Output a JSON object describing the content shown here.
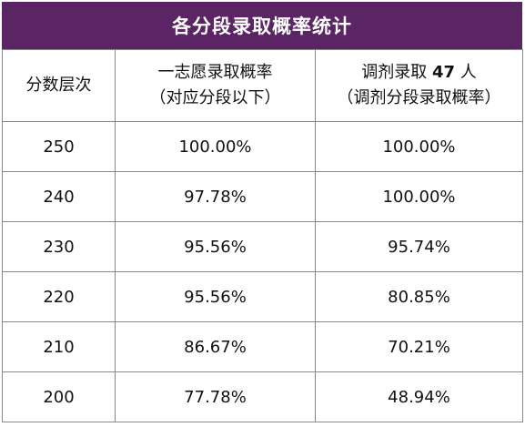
{
  "title": "各分段录取概率统计",
  "headers": {
    "col1": "分数层次",
    "col2_line1": "一志愿录取概率",
    "col2_line2": "（对应分段以下）",
    "col3_prefix": "调剂录取",
    "col3_count": "47",
    "col3_suffix": "人",
    "col3_line2": "（调剂分段录取概率）"
  },
  "rows": [
    {
      "score": "250",
      "first_choice": "100.00%",
      "adjusted": "100.00%"
    },
    {
      "score": "240",
      "first_choice": "97.78%",
      "adjusted": "100.00%"
    },
    {
      "score": "230",
      "first_choice": "95.56%",
      "adjusted": "95.74%"
    },
    {
      "score": "220",
      "first_choice": "95.56%",
      "adjusted": "80.85%"
    },
    {
      "score": "210",
      "first_choice": "86.67%",
      "adjusted": "70.21%"
    },
    {
      "score": "200",
      "first_choice": "77.78%",
      "adjusted": "48.94%"
    }
  ],
  "colors": {
    "title_bg": "#5b2464",
    "title_text": "#ffffff",
    "border": "#8a8a8a"
  }
}
